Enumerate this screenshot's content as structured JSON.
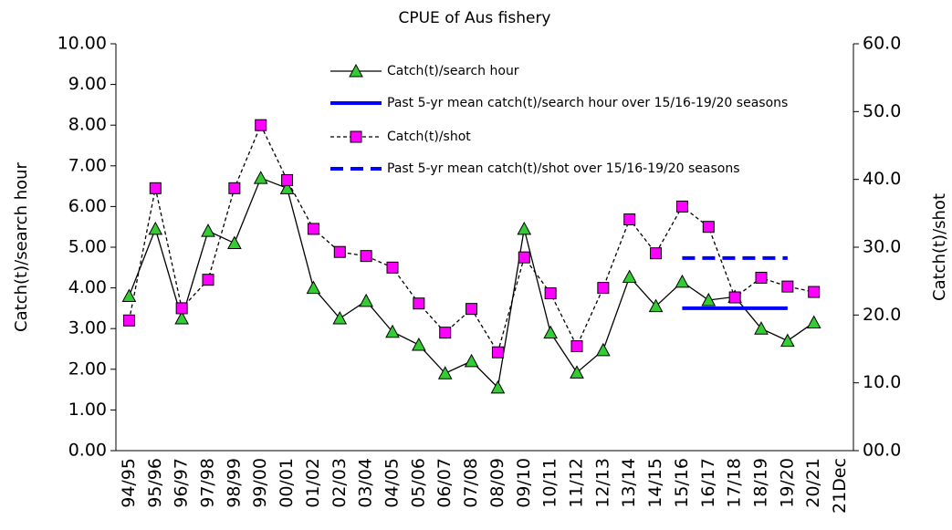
{
  "chart_data": {
    "type": "line",
    "title": "CPUE of Aus fishery",
    "y_label": "Catch(t)/search hour",
    "y2_label": "Catch(t)/shot",
    "categories": [
      "94/95",
      "95/96",
      "96/97",
      "97/98",
      "98/99",
      "99/00",
      "00/01",
      "01/02",
      "02/03",
      "03/04",
      "04/05",
      "05/06",
      "06/07",
      "07/08",
      "08/09",
      "09/10",
      "10/11",
      "11/12",
      "12/13",
      "13/14",
      "14/15",
      "15/16",
      "16/17",
      "17/18",
      "18/19",
      "19/20",
      "20/21",
      "21Dec"
    ],
    "ylim": [
      0,
      10
    ],
    "yticks": [
      {
        "value": 0,
        "label": "0.00"
      },
      {
        "value": 1,
        "label": "1.00"
      },
      {
        "value": 2,
        "label": "2.00"
      },
      {
        "value": 3,
        "label": "3.00"
      },
      {
        "value": 4,
        "label": "4.00"
      },
      {
        "value": 5,
        "label": "5.00"
      },
      {
        "value": 6,
        "label": "6.00"
      },
      {
        "value": 7,
        "label": "7.00"
      },
      {
        "value": 8,
        "label": "8.00"
      },
      {
        "value": 9,
        "label": "9.00"
      },
      {
        "value": 10,
        "label": "10.00"
      }
    ],
    "y2lim": [
      0,
      60
    ],
    "y2ticks": [
      {
        "value": 0,
        "label": "00.0"
      },
      {
        "value": 10,
        "label": "10.0"
      },
      {
        "value": 20,
        "label": "20.0"
      },
      {
        "value": 30,
        "label": "30.0"
      },
      {
        "value": 40,
        "label": "40.0"
      },
      {
        "value": 50,
        "label": "50.0"
      },
      {
        "value": 60,
        "label": "60.0"
      }
    ],
    "series": [
      {
        "name": "Catch(t)/search hour",
        "color": "#000000",
        "marker": "triangle",
        "marker_color": "#33cc33",
        "dash": false,
        "values": [
          3.8,
          5.45,
          3.25,
          5.4,
          5.1,
          6.7,
          6.45,
          4.0,
          3.25,
          3.68,
          2.92,
          2.6,
          1.9,
          2.2,
          1.55,
          5.45,
          2.9,
          1.92,
          2.47,
          4.27,
          3.55,
          4.15,
          3.7,
          3.78,
          3.0,
          2.7,
          3.15,
          null
        ]
      },
      {
        "name": "Past 5-yr mean catch(t)/search hour over 15/16-19/20 seasons",
        "color": "#0000ff",
        "dash": false,
        "thick": true,
        "values": [
          null,
          null,
          null,
          null,
          null,
          null,
          null,
          null,
          null,
          null,
          null,
          null,
          null,
          null,
          null,
          null,
          null,
          null,
          null,
          null,
          null,
          3.5,
          3.5,
          3.5,
          3.5,
          3.5,
          null,
          null
        ]
      },
      {
        "name": "Catch(t)/shot",
        "color": "#000000",
        "marker": "square",
        "marker_color": "#ff00ff",
        "dash": true,
        "axis": "y2",
        "values": [
          19.2,
          38.7,
          21,
          25.2,
          38.7,
          48,
          39.9,
          32.7,
          29.3,
          28.7,
          27,
          21.7,
          17.4,
          20.9,
          14.5,
          28.5,
          23.2,
          15.4,
          24,
          34.1,
          29.1,
          36,
          33,
          22.6,
          25.5,
          24.2,
          23.4,
          null
        ]
      },
      {
        "name": "Past 5-yr mean catch(t)/shot over 15/16-19/20 seasons",
        "color": "#0000ff",
        "dash": true,
        "thick": true,
        "axis": "y2",
        "values": [
          null,
          null,
          null,
          null,
          null,
          null,
          null,
          null,
          null,
          null,
          null,
          null,
          null,
          null,
          null,
          null,
          null,
          null,
          null,
          null,
          null,
          28.4,
          28.4,
          28.4,
          28.4,
          28.4,
          null,
          null
        ]
      }
    ]
  }
}
